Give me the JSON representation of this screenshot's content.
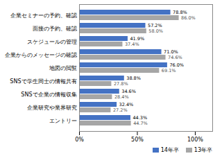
{
  "chart_data": {
    "type": "bar",
    "orientation": "horizontal",
    "categories": [
      "企業セミナーの予約、確認",
      "面接の予約、確認",
      "スケジュールの管理",
      "企業からのメッセージの確認",
      "地図の閲覧",
      "SNSで学生同士の情報共有",
      "SNSで企業の情報収集",
      "企業研究や業界研究",
      "エントリー"
    ],
    "series": [
      {
        "name": "14年卒",
        "color": "#4472C4",
        "values": [
          78.8,
          57.2,
          41.9,
          71.0,
          76.0,
          38.8,
          34.6,
          32.4,
          44.3
        ],
        "value_labels": [
          "78.8%",
          "57.2%",
          "41.9%",
          "71.0%",
          "76.0%",
          "38.8%",
          "34.6%",
          "32.4%",
          "44.3%"
        ]
      },
      {
        "name": "13年卒",
        "color": "#A6A6A6",
        "values": [
          86.0,
          58.0,
          37.4,
          74.6,
          69.1,
          27.8,
          28.4,
          27.2,
          44.7
        ],
        "value_labels": [
          "86.0%",
          "58.0%",
          "37.4%",
          "74.6%",
          "69.1%",
          "27.8%",
          "28.4%",
          "27.2%",
          "44.7%"
        ]
      }
    ],
    "xlim": [
      0,
      115
    ],
    "xticks": [
      {
        "value": 0,
        "label": "0%"
      },
      {
        "value": 50,
        "label": "50%"
      },
      {
        "value": 100,
        "label": "100%"
      }
    ],
    "data_labels": true,
    "legend": "lower right",
    "grid": false
  }
}
